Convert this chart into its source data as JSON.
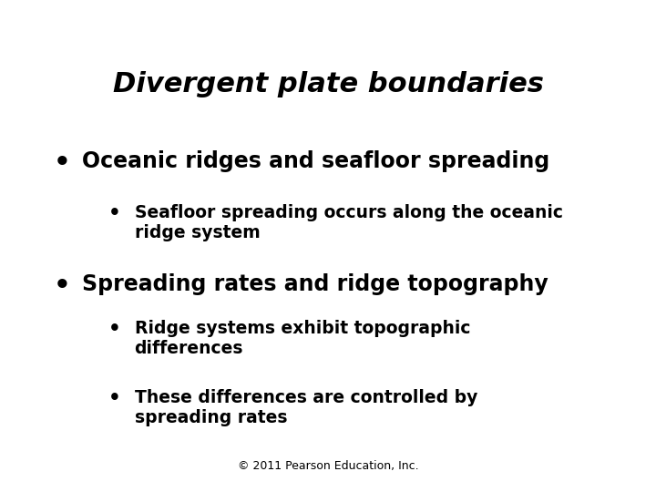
{
  "title": "Divergent plate boundaries",
  "background_color": "#ffffff",
  "text_color": "#000000",
  "footer": "© 2011 Pearson Education, Inc.",
  "title_fontsize": 22,
  "title_style": "italic",
  "title_weight": "bold",
  "bullet1_text": "Oceanic ridges and seafloor spreading",
  "bullet1_fontsize": 17,
  "bullet1_weight": "bold",
  "sub_bullet1_text": "Seafloor spreading occurs along the oceanic\nridge system",
  "sub_bullet1_fontsize": 13.5,
  "bullet2_text": "Spreading rates and ridge topography",
  "bullet2_fontsize": 17,
  "bullet2_weight": "bold",
  "sub_bullet2a_text": "Ridge systems exhibit topographic\ndifferences",
  "sub_bullet2b_text": "These differences are controlled by\nspreading rates",
  "sub_bullet2_fontsize": 13.5,
  "footer_fontsize": 9
}
